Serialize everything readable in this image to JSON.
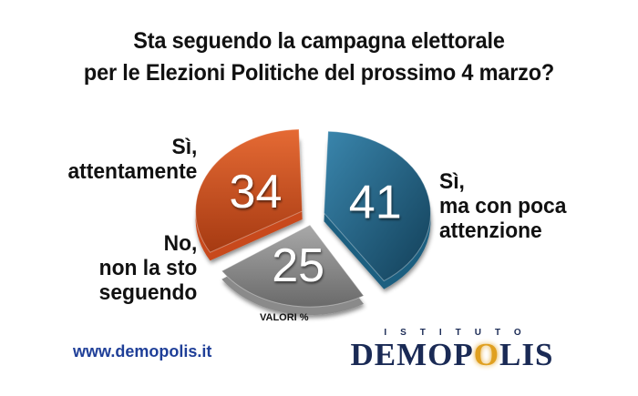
{
  "title": {
    "line1": "Sta seguendo la campagna elettorale",
    "line2": "per le Elezioni Politiche del prossimo 4 marzo?"
  },
  "chart_data": {
    "type": "pie",
    "title": "Sta seguendo la campagna elettorale per le Elezioni Politiche del prossimo 4 marzo?",
    "unit_label": "VALORI %",
    "slices": [
      {
        "label": "Sì, attentamente",
        "value": 34,
        "color": "#c84a1d"
      },
      {
        "label": "Sì, ma con poca attenzione",
        "value": 41,
        "color": "#1f5f80"
      },
      {
        "label": "No, non la sto seguendo",
        "value": 25,
        "color": "#8a8a8a"
      }
    ]
  },
  "labels": {
    "attentamente": {
      "line1": "Sì,",
      "line2": "attentamente"
    },
    "poca": {
      "line1": "Sì,",
      "line2": "ma con poca",
      "line3": "attenzione"
    },
    "no": {
      "line1": "No,",
      "line2": "non la sto",
      "line3": "seguendo"
    }
  },
  "footer": {
    "website": "www.demopolis.it",
    "logo_small": "ISTITUTO",
    "logo_big": "DEMOPOLIS"
  },
  "colors": {
    "website": "#1f3f98",
    "logo": "#1a2a55",
    "logo_accent": "#e0a020"
  }
}
